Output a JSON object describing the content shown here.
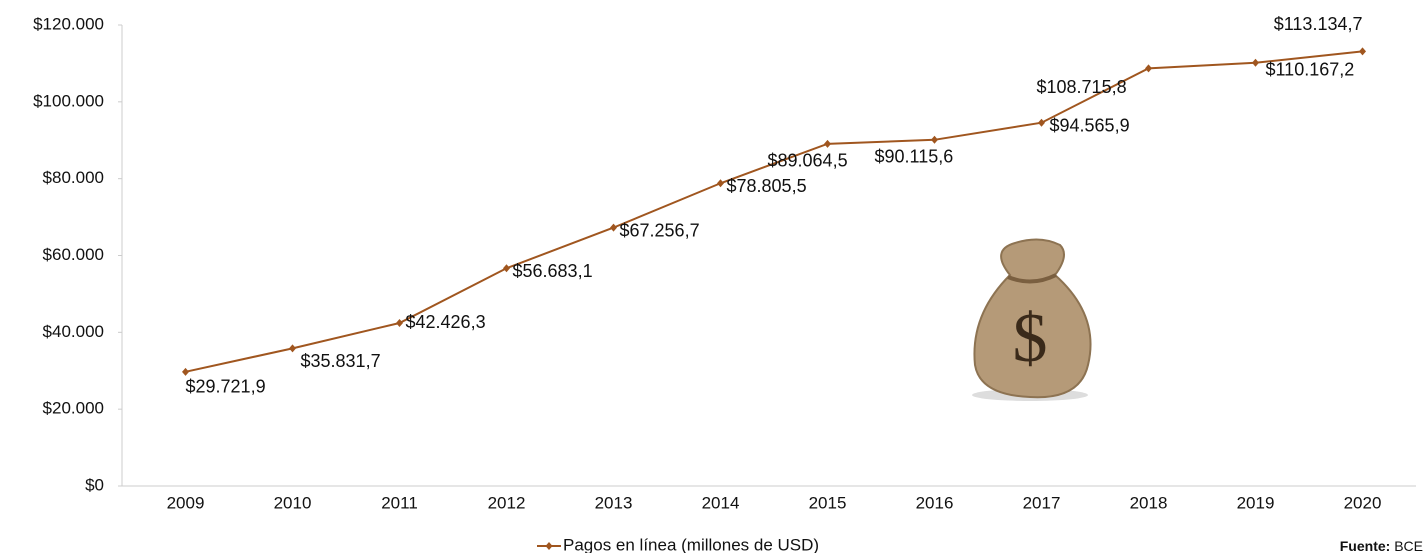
{
  "chart_data": {
    "type": "line",
    "categories": [
      "2009",
      "2010",
      "2011",
      "2012",
      "2013",
      "2014",
      "2015",
      "2016",
      "2017",
      "2018",
      "2019",
      "2020"
    ],
    "series": [
      {
        "name": "Pagos en línea (millones de USD)",
        "color": "#a0561f",
        "values": [
          29721.9,
          35831.7,
          42426.3,
          56683.1,
          67256.7,
          78805.5,
          89064.5,
          90115.6,
          94565.9,
          108715.8,
          110167.2,
          113134.7
        ],
        "value_labels": [
          "$29.721,9",
          "$35.831,7",
          "$42.426,3",
          "$56.683,1",
          "$67.256,7",
          "$78.805,5",
          "$89.064,5",
          "$90.115,6",
          "$94.565,9",
          "$108.715,8",
          "$110.167,2",
          "$113.134,7"
        ]
      }
    ],
    "ylim": [
      0,
      120000
    ],
    "yticks": [
      {
        "value": 0,
        "label": "$0"
      },
      {
        "value": 20000,
        "label": "$20.000"
      },
      {
        "value": 40000,
        "label": "$40.000"
      },
      {
        "value": 60000,
        "label": "$60.000"
      },
      {
        "value": 80000,
        "label": "$80.000"
      },
      {
        "value": 100000,
        "label": "$100.000"
      },
      {
        "value": 120000,
        "label": "$120.000"
      }
    ],
    "grid": false,
    "legend": "bottom",
    "source": {
      "label": "Fuente:",
      "text": "BCE"
    }
  }
}
